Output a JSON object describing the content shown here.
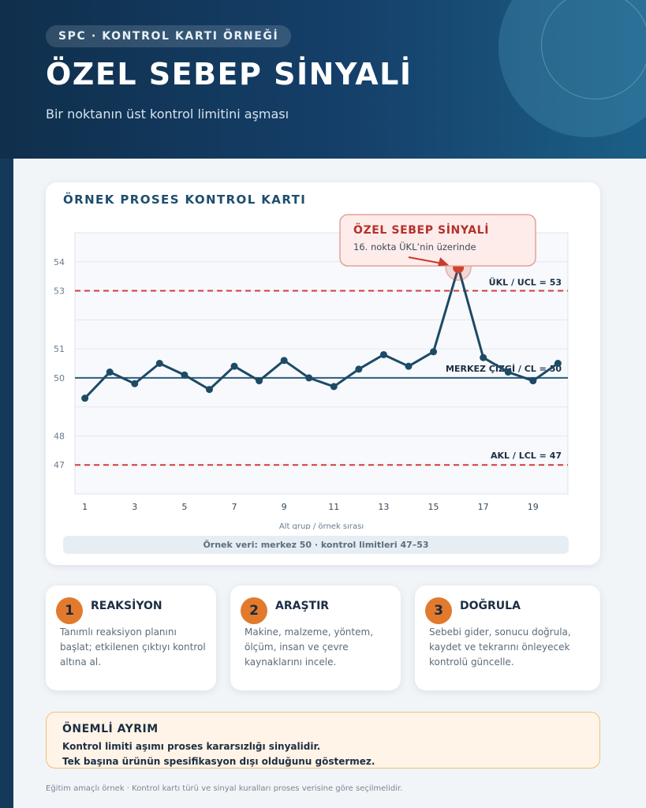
{
  "header": {
    "pill": "SPC · KONTROL KARTI ÖRNEĞİ",
    "title": "ÖZEL SEBEP SİNYALİ",
    "subtitle": "Bir noktanın üst kontrol limitini aşması"
  },
  "chart_card": {
    "title": "ÖRNEK PROSES KONTROL KARTI",
    "note": "Örnek veri: merkez 50 · kontrol limitleri 47–53"
  },
  "callout": {
    "title": "ÖZEL SEBEP SİNYALİ",
    "text": "16. nokta ÜKL’nin üzerinde"
  },
  "chart_data": {
    "type": "line",
    "title": "ÖRNEK PROSES KONTROL KARTI",
    "xlabel": "Alt grup / örnek sırası",
    "ylabel": "",
    "x": [
      1,
      2,
      3,
      4,
      5,
      6,
      7,
      8,
      9,
      10,
      11,
      12,
      13,
      14,
      15,
      16,
      17,
      18,
      19,
      20
    ],
    "series": [
      {
        "values": [
          49.3,
          50.2,
          49.8,
          50.5,
          50.1,
          49.6,
          50.4,
          49.9,
          50.6,
          50.0,
          49.7,
          50.3,
          50.8,
          50.4,
          50.9,
          53.8,
          50.7,
          50.2,
          49.9,
          50.5
        ]
      }
    ],
    "xticks": [
      1,
      3,
      5,
      7,
      9,
      11,
      13,
      15,
      17,
      19
    ],
    "yticks": [
      47,
      48,
      50,
      51,
      53,
      54
    ],
    "ylim": [
      46,
      55
    ],
    "xlim": [
      0.6,
      20.4
    ],
    "grid": true,
    "center_line": {
      "value": 50,
      "label": "MERKEZ ÇİZGİ / CL = 50"
    },
    "ucl": {
      "value": 53,
      "label": "ÜKL / UCL = 53"
    },
    "lcl": {
      "value": 47,
      "label": "AKL / LCL = 47"
    },
    "highlight_point": 16,
    "colors": {
      "line": "#1d4a66",
      "cl": "#2a5d7d",
      "limit": "#d43b3b",
      "signal": "#d2402f"
    }
  },
  "steps": [
    {
      "num": "1",
      "title": "REAKSİYON",
      "desc": "Tanımlı reaksiyon planını başlat; etkilenen çıktıyı kontrol altına al."
    },
    {
      "num": "2",
      "title": "ARAŞTIR",
      "desc": "Makine, malzeme, yöntem, ölçüm, insan ve çevre kaynaklarını incele."
    },
    {
      "num": "3",
      "title": "DOĞRULA",
      "desc": "Sebebi gider, sonucu doğrula, kaydet ve tekrarını önleyecek kontrolü güncelle."
    }
  ],
  "warning": {
    "title": "ÖNEMLİ AYRIM",
    "line1": "Kontrol limiti aşımı proses kararsızlığı sinyalidir.",
    "line2": "Tek başına ürünün spesifikasyon dışı olduğunu göstermez."
  },
  "footer": "Eğitim amaçlı örnek · Kontrol kartı türü ve sinyal kuralları proses verisine göre seçilmelidir."
}
